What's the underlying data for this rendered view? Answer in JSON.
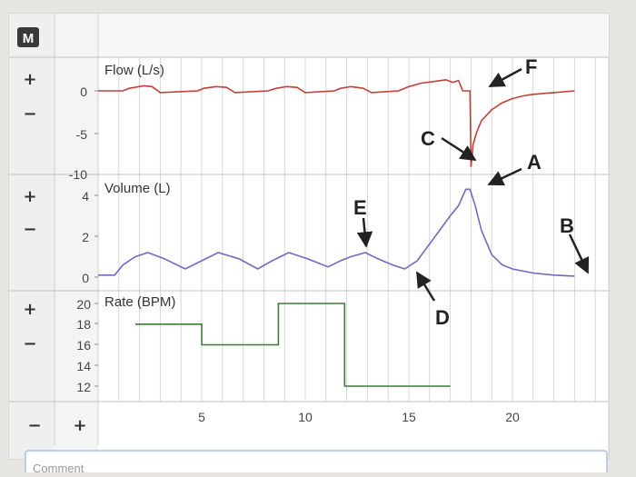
{
  "app_badge": "M",
  "controls": {
    "zoom_in": "+",
    "zoom_out": "−"
  },
  "comment_placeholder": "Comment",
  "colors": {
    "flow": "#c0403a",
    "volume": "#6f6ac0",
    "rate": "#3f7a3a",
    "grid": "#d6d6d6",
    "panel_bg": "#ffffff",
    "side_bg": "#efefef",
    "annotation": "#222222"
  },
  "chart_data": [
    {
      "type": "line",
      "title": "Flow (L/s)",
      "x_range": [
        0,
        23
      ],
      "ylim": [
        -10,
        1.5
      ],
      "y_ticks": [
        "0",
        "-5",
        "-10"
      ],
      "series": [
        {
          "x": [
            0,
            1.2,
            1.5,
            2.2,
            2.6,
            3.0,
            4.8,
            5.1,
            5.7,
            6.2,
            6.6,
            8.2,
            8.6,
            9.1,
            9.6,
            10.0,
            11.4,
            11.7,
            12.2,
            12.8,
            13.2,
            14.5,
            15.0,
            15.6,
            16.2,
            16.8,
            17.1,
            17.4,
            17.6,
            17.95,
            18.0,
            18.1,
            18.25,
            18.5,
            19.0,
            19.5,
            20.0,
            20.5,
            21.0,
            22.0,
            23.0
          ],
          "y": [
            0,
            0,
            0.3,
            0.6,
            0.5,
            -0.2,
            0,
            0.3,
            0.5,
            0.4,
            -0.2,
            0,
            0.3,
            0.5,
            0.4,
            -0.2,
            0,
            0.3,
            0.5,
            0.3,
            -0.2,
            0,
            0.5,
            0.9,
            1.1,
            1.3,
            1.0,
            1.2,
            0,
            0,
            -8.9,
            -6.3,
            -5.0,
            -3.5,
            -2.2,
            -1.4,
            -0.9,
            -0.6,
            -0.4,
            -0.2,
            0
          ]
        }
      ]
    },
    {
      "type": "line",
      "title": "Volume (L)",
      "x_range": [
        0,
        23
      ],
      "ylim": [
        -0.5,
        5
      ],
      "y_ticks": [
        "4",
        "2",
        "0"
      ],
      "series": [
        {
          "x": [
            0,
            0.8,
            1.2,
            1.8,
            2.4,
            3.2,
            4.2,
            5.0,
            5.8,
            6.8,
            7.7,
            8.4,
            9.2,
            10.1,
            11.1,
            11.7,
            12.2,
            12.9,
            13.5,
            14.2,
            14.8,
            15.4,
            16.2,
            17.0,
            17.4,
            17.75,
            17.95,
            18.2,
            18.5,
            19.0,
            19.5,
            20.0,
            21.0,
            22.0,
            23.0
          ],
          "y": [
            0.1,
            0.1,
            0.6,
            1.0,
            1.2,
            0.9,
            0.4,
            0.8,
            1.2,
            0.9,
            0.4,
            0.8,
            1.2,
            0.9,
            0.5,
            0.8,
            1.0,
            1.2,
            0.9,
            0.6,
            0.4,
            0.8,
            1.9,
            3.0,
            3.5,
            4.3,
            4.3,
            3.5,
            2.3,
            1.1,
            0.6,
            0.4,
            0.2,
            0.1,
            0.05
          ]
        }
      ]
    },
    {
      "type": "line",
      "title": "Rate (BPM)",
      "xlabel": "",
      "x_range": [
        0,
        23
      ],
      "x_ticks": [
        5,
        10,
        15,
        20
      ],
      "ylim": [
        11,
        21
      ],
      "y_ticks": [
        "20",
        "18",
        "16",
        "14",
        "12"
      ],
      "series": [
        {
          "x": [
            1.8,
            5.0,
            5.0,
            8.7,
            8.7,
            11.9,
            11.9,
            17.0
          ],
          "y": [
            18,
            18,
            16,
            16,
            20,
            20,
            12,
            12
          ]
        }
      ]
    }
  ],
  "annotations": [
    {
      "label": "A"
    },
    {
      "label": "B"
    },
    {
      "label": "C"
    },
    {
      "label": "D"
    },
    {
      "label": "E"
    },
    {
      "label": "F"
    }
  ]
}
